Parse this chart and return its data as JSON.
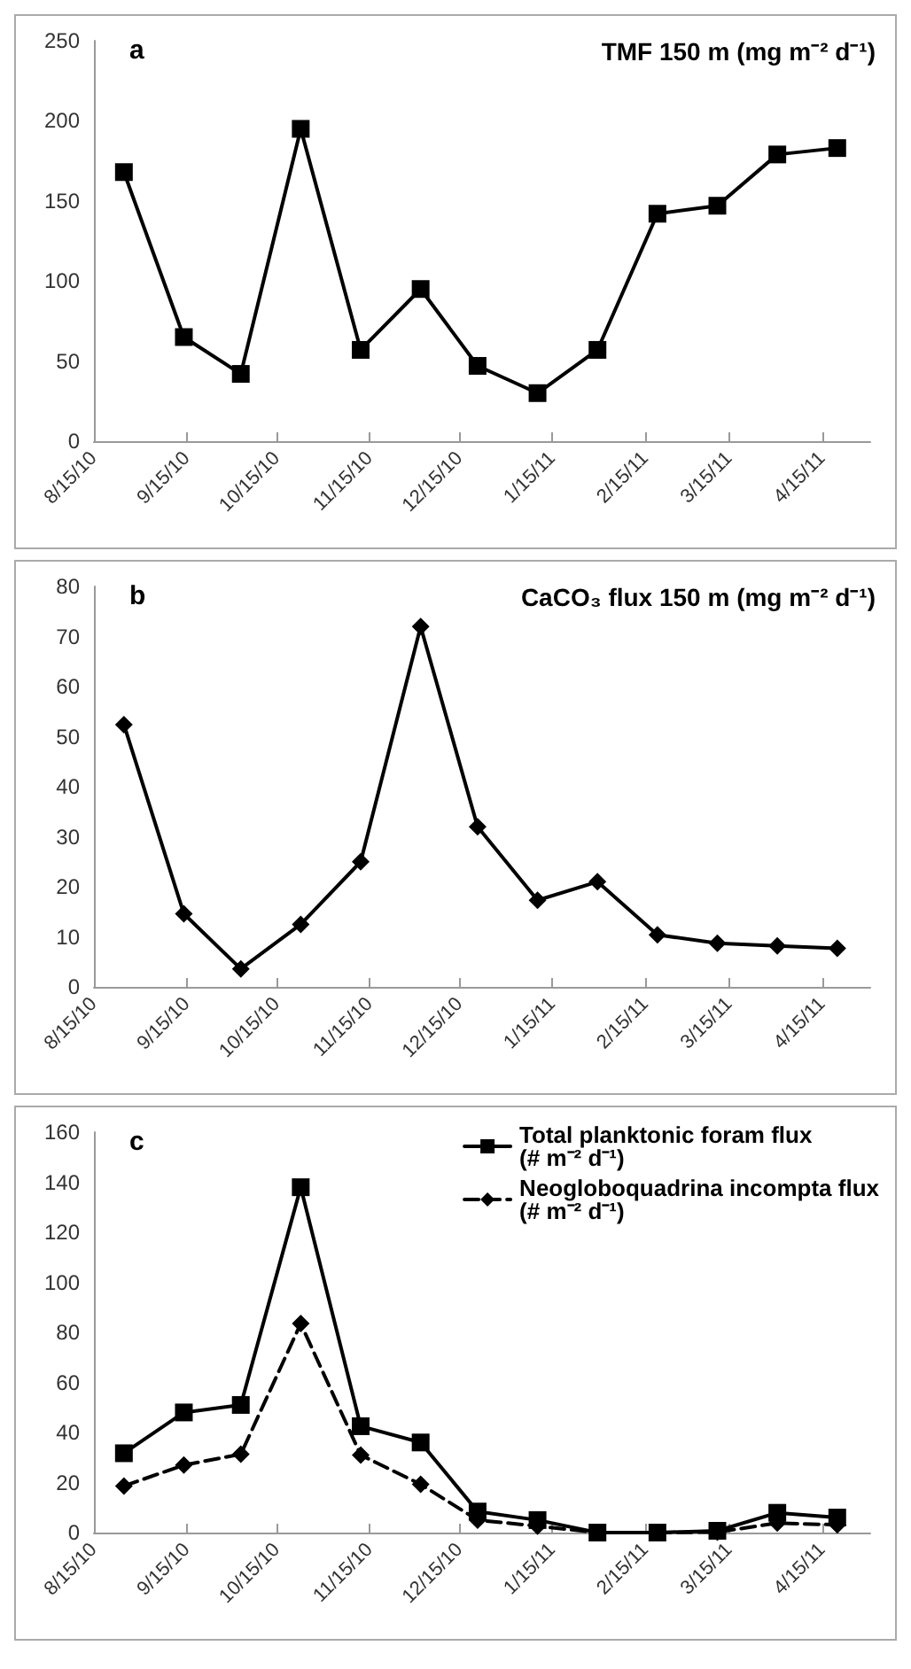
{
  "chart_data": [
    {
      "type": "line",
      "title": "TMF 150 m (mg m⁻² d⁻¹)",
      "annotations": [
        "a"
      ],
      "x": [
        "2010-08-25",
        "2010-09-14",
        "2010-10-03",
        "2010-10-23",
        "2010-11-12",
        "2010-12-02",
        "2010-12-21",
        "2011-01-10",
        "2011-01-30",
        "2011-02-19",
        "2011-03-11",
        "2011-03-31",
        "2011-04-20"
      ],
      "series": [
        {
          "color": "#000000",
          "marker": "square",
          "values": [
            168,
            65,
            42,
            195,
            57,
            95,
            47,
            30,
            57,
            142,
            147,
            179,
            183
          ]
        }
      ],
      "xlim": [
        "2010-08-15",
        "2011-05-01"
      ],
      "xticks": [
        {
          "value": "2010-08-15",
          "label": "8/15/10"
        },
        {
          "value": "2010-09-15",
          "label": "9/15/10"
        },
        {
          "value": "2010-10-15",
          "label": "10/15/10"
        },
        {
          "value": "2010-11-15",
          "label": "11/15/10"
        },
        {
          "value": "2010-12-15",
          "label": "12/15/10"
        },
        {
          "value": "2011-01-15",
          "label": "1/15/11"
        },
        {
          "value": "2011-02-15",
          "label": "2/15/11"
        },
        {
          "value": "2011-03-15",
          "label": "3/15/11"
        },
        {
          "value": "2011-04-15",
          "label": "4/15/11"
        }
      ],
      "ylim": [
        0,
        250
      ],
      "yticks": [
        0,
        50,
        100,
        150,
        200,
        250
      ],
      "grid": false,
      "legend": false,
      "line_style": "solid"
    },
    {
      "type": "line",
      "title": "CaCO₃ flux 150 m (mg m⁻² d⁻¹)",
      "annotations": [
        "b"
      ],
      "x": [
        "2010-08-25",
        "2010-09-14",
        "2010-10-03",
        "2010-10-23",
        "2010-11-12",
        "2010-12-02",
        "2010-12-21",
        "2011-01-10",
        "2011-01-30",
        "2011-02-19",
        "2011-03-11",
        "2011-03-31",
        "2011-04-20"
      ],
      "series": [
        {
          "color": "#000000",
          "marker": "diamond",
          "values": [
            52.4,
            14.6,
            3.6,
            12.5,
            25,
            72,
            32,
            17.3,
            21,
            10.4,
            8.7,
            8.2,
            7.7
          ]
        }
      ],
      "xlim": [
        "2010-08-15",
        "2011-05-01"
      ],
      "xticks": [
        {
          "value": "2010-08-15",
          "label": "8/15/10"
        },
        {
          "value": "2010-09-15",
          "label": "9/15/10"
        },
        {
          "value": "2010-10-15",
          "label": "10/15/10"
        },
        {
          "value": "2010-11-15",
          "label": "11/15/10"
        },
        {
          "value": "2010-12-15",
          "label": "12/15/10"
        },
        {
          "value": "2011-01-15",
          "label": "1/15/11"
        },
        {
          "value": "2011-02-15",
          "label": "2/15/11"
        },
        {
          "value": "2011-03-15",
          "label": "3/15/11"
        },
        {
          "value": "2011-04-15",
          "label": "4/15/11"
        }
      ],
      "ylim": [
        0,
        80
      ],
      "yticks": [
        0,
        10,
        20,
        30,
        40,
        50,
        60,
        70,
        80
      ],
      "grid": false,
      "legend": false,
      "line_style": "solid"
    },
    {
      "type": "line",
      "annotations": [
        "c"
      ],
      "x": [
        "2010-08-25",
        "2010-09-14",
        "2010-10-03",
        "2010-10-23",
        "2010-11-12",
        "2010-12-02",
        "2010-12-21",
        "2011-01-10",
        "2011-01-30",
        "2011-02-19",
        "2011-03-11",
        "2011-03-31",
        "2011-04-20"
      ],
      "series": [
        {
          "name": "Total planktonic foram flux (# m⁻² d⁻¹)",
          "color": "#000000",
          "marker": "square",
          "line_style": "solid",
          "values": [
            31.7,
            48,
            51,
            138,
            42.5,
            36,
            8.4,
            5,
            0,
            0,
            0.7,
            7.9,
            6
          ]
        },
        {
          "name": "Neogloboquadrina incompta flux (# m⁻² d⁻¹)",
          "color": "#000000",
          "marker": "diamond",
          "line_style": "dashed",
          "values": [
            18.6,
            27,
            31.3,
            83.5,
            31,
            19.3,
            5,
            2.6,
            0,
            0,
            0.2,
            3.8,
            3.1
          ]
        }
      ],
      "xlim": [
        "2010-08-15",
        "2011-05-01"
      ],
      "xticks": [
        {
          "value": "2010-08-15",
          "label": "8/15/10"
        },
        {
          "value": "2010-09-15",
          "label": "9/15/10"
        },
        {
          "value": "2010-10-15",
          "label": "10/15/10"
        },
        {
          "value": "2010-11-15",
          "label": "11/15/10"
        },
        {
          "value": "2010-12-15",
          "label": "12/15/10"
        },
        {
          "value": "2011-01-15",
          "label": "1/15/11"
        },
        {
          "value": "2011-02-15",
          "label": "2/15/11"
        },
        {
          "value": "2011-03-15",
          "label": "3/15/11"
        },
        {
          "value": "2011-04-15",
          "label": "4/15/11"
        }
      ],
      "ylim": [
        0,
        160
      ],
      "yticks": [
        0,
        20,
        40,
        60,
        80,
        100,
        120,
        140,
        160
      ],
      "grid": false,
      "legend": "top right"
    }
  ]
}
